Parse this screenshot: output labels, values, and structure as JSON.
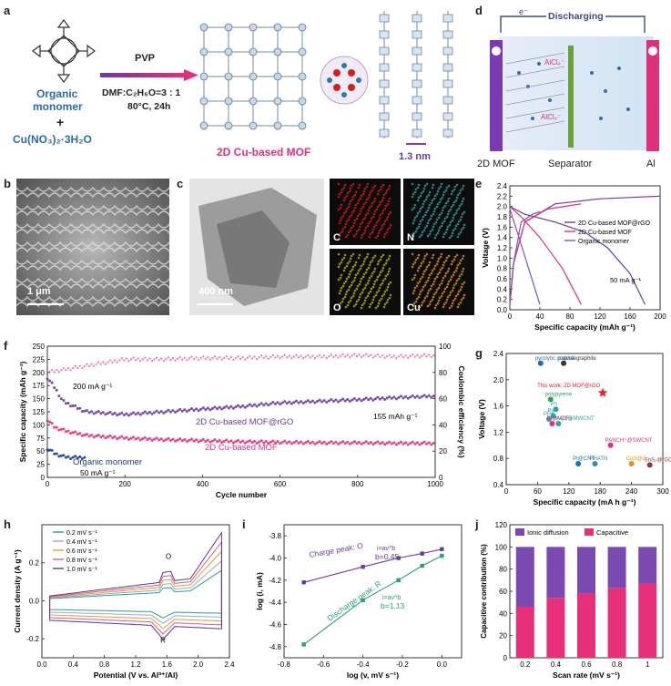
{
  "panel_labels": {
    "a": "a",
    "b": "b",
    "c": "c",
    "d": "d",
    "e": "e",
    "f": "f",
    "g": "g",
    "h": "h",
    "i": "i",
    "j": "j"
  },
  "panel_a": {
    "monomer_line1": "Organic",
    "monomer_line2": "monomer",
    "plus": "+",
    "salt": "Cu(NO₃)₂·3H₂O",
    "arrow_top": "PVP",
    "cond1": "DMF:C₂H₅O=3 : 1",
    "cond2": "80°C, 24h",
    "product": "2D Cu-based MOF",
    "spacing": "1.3 nm"
  },
  "panel_b": {
    "scale": "1 μm"
  },
  "panel_c": {
    "scale": "400 nm",
    "maps": [
      "C",
      "N",
      "O",
      "Cu"
    ],
    "map_colors": [
      "#d01818",
      "#2a9a9a",
      "#a8a820",
      "#d08a18"
    ]
  },
  "panel_d": {
    "title": "Discharging",
    "electron": "e⁻",
    "anode": "2D MOF",
    "separator": "Separator",
    "cathode": "Al",
    "species1": "AlCl₄⁻",
    "species2": "AlCl₄⁻"
  },
  "chart_data": [
    {
      "panel": "e",
      "type": "line",
      "xlabel": "Specific capacity (mAh g⁻¹)",
      "ylabel": "Voltage (V)",
      "xlim": [
        0,
        200
      ],
      "ylim": [
        0,
        2.4
      ],
      "xticks": [
        0,
        40,
        80,
        120,
        160,
        200
      ],
      "yticks": [
        0,
        0.2,
        0.4,
        0.6,
        0.8,
        1.0,
        1.2,
        1.4,
        1.6,
        1.8,
        2.0,
        2.2,
        2.4
      ],
      "annotation": "50 mA g⁻¹",
      "series": [
        {
          "name": "2D Cu-based MOF@rGO",
          "color": "#6a3aa0",
          "discharge": [
            [
              0,
              2.0
            ],
            [
              20,
              1.85
            ],
            [
              60,
              1.7
            ],
            [
              100,
              1.5
            ],
            [
              130,
              1.2
            ],
            [
              160,
              0.7
            ],
            [
              180,
              0.1
            ]
          ],
          "charge": [
            [
              0,
              0.1
            ],
            [
              5,
              0.9
            ],
            [
              20,
              1.7
            ],
            [
              60,
              2.05
            ],
            [
              120,
              2.15
            ],
            [
              200,
              2.2
            ]
          ]
        },
        {
          "name": "2D Cu-based MOF",
          "color": "#e0307a",
          "discharge": [
            [
              0,
              2.0
            ],
            [
              15,
              1.8
            ],
            [
              40,
              1.4
            ],
            [
              70,
              0.8
            ],
            [
              95,
              0.1
            ]
          ],
          "charge": [
            [
              0,
              0.1
            ],
            [
              5,
              0.9
            ],
            [
              20,
              1.7
            ],
            [
              50,
              1.95
            ],
            [
              95,
              2.05
            ]
          ]
        },
        {
          "name": "Organic monomer",
          "color": "#7a55b8",
          "discharge": [
            [
              0,
              1.95
            ],
            [
              10,
              1.5
            ],
            [
              25,
              0.8
            ],
            [
              40,
              0.1
            ]
          ],
          "charge": [
            [
              0,
              0.1
            ],
            [
              5,
              0.9
            ],
            [
              15,
              1.7
            ],
            [
              30,
              1.85
            ],
            [
              40,
              1.9
            ]
          ]
        }
      ]
    },
    {
      "panel": "f",
      "type": "scatter",
      "xlabel": "Cycle number",
      "ylabel": "Specific capacity (mAh g⁻¹)",
      "y2label": "Coulombic efficiency (%)",
      "xlim": [
        0,
        1000
      ],
      "ylim": [
        0,
        250
      ],
      "y2lim": [
        0,
        100
      ],
      "xticks": [
        0,
        200,
        400,
        600,
        800,
        1000
      ],
      "yticks": [
        0,
        25,
        50,
        75,
        100,
        125,
        150,
        175,
        200,
        225,
        250
      ],
      "y2ticks": [
        0,
        20,
        40,
        60,
        80,
        100
      ],
      "annotations": [
        "200 mA g⁻¹",
        "50 mA g⁻¹",
        "155 mAh g⁻¹"
      ],
      "series": [
        {
          "name": "2D Cu-based MOF@rGO",
          "color": "#6a3aa0",
          "points": [
            [
              0,
              190
            ],
            [
              20,
              170
            ],
            [
              40,
              145
            ],
            [
              100,
              125
            ],
            [
              200,
              120
            ],
            [
              300,
              125
            ],
            [
              400,
              130
            ],
            [
              500,
              135
            ],
            [
              600,
              142
            ],
            [
              700,
              145
            ],
            [
              800,
              148
            ],
            [
              900,
              152
            ],
            [
              1000,
              155
            ]
          ]
        },
        {
          "name": "2D Cu-based MOF",
          "color": "#e0307a",
          "points": [
            [
              0,
              110
            ],
            [
              20,
              95
            ],
            [
              50,
              88
            ],
            [
              100,
              80
            ],
            [
              200,
              75
            ],
            [
              300,
              72
            ],
            [
              400,
              70
            ],
            [
              500,
              68
            ],
            [
              600,
              67
            ],
            [
              700,
              66
            ],
            [
              800,
              66
            ],
            [
              900,
              65
            ],
            [
              1000,
              65
            ]
          ]
        },
        {
          "name": "Organic monomer",
          "color": "#1a3a90",
          "points": [
            [
              0,
              55
            ],
            [
              20,
              45
            ],
            [
              40,
              40
            ],
            [
              60,
              38
            ],
            [
              80,
              38
            ],
            [
              100,
              38
            ]
          ]
        },
        {
          "name": "CE",
          "color": "#e0307a",
          "points": [
            [
              0,
              80
            ],
            [
              100,
              85
            ],
            [
              200,
              90
            ],
            [
              300,
              90
            ],
            [
              400,
              91
            ],
            [
              500,
              91
            ],
            [
              600,
              92
            ],
            [
              700,
              92
            ],
            [
              800,
              93
            ],
            [
              900,
              92
            ],
            [
              1000,
              93
            ]
          ]
        }
      ]
    },
    {
      "panel": "g",
      "type": "scatter",
      "xlabel": "Specific capacity (mA h g⁻¹)",
      "ylabel": "Voltage (V)",
      "xlim": [
        0,
        300
      ],
      "ylim": [
        0.4,
        2.4
      ],
      "xticks": [
        0,
        60,
        120,
        180,
        240,
        300
      ],
      "yticks": [
        0.4,
        0.8,
        1.2,
        1.6,
        2.0,
        2.4
      ],
      "points": [
        {
          "label": "natural graphite",
          "x": 110,
          "y": 2.25,
          "color": "#333333"
        },
        {
          "label": "pyrolytic graphite",
          "x": 66,
          "y": 2.25,
          "color": "#2a6ab0"
        },
        {
          "label": "This work: 2D MOF@rGO",
          "x": 185,
          "y": 1.8,
          "color": "#e0202a"
        },
        {
          "label": "polypyrene",
          "x": 85,
          "y": 1.7,
          "color": "#30a050"
        },
        {
          "label": "Pn",
          "x": 95,
          "y": 1.55,
          "color": "#30a0a0"
        },
        {
          "label": "Py",
          "x": 90,
          "y": 1.45,
          "color": "#30a0a0"
        },
        {
          "label": "PPy",
          "x": 82,
          "y": 1.4,
          "color": "#30a0a0"
        },
        {
          "label": "PI@MOFs",
          "x": 88,
          "y": 1.33,
          "color": "#e0307a"
        },
        {
          "label": "PAQS@MWCNT",
          "x": 100,
          "y": 1.33,
          "color": "#30a0a0"
        },
        {
          "label": "PANCH⁺@SWCNT",
          "x": 200,
          "y": 1.0,
          "color": "#e0307a"
        },
        {
          "label": "PI@CNT",
          "x": 138,
          "y": 0.72,
          "color": "#1a70b0"
        },
        {
          "label": "PHATN",
          "x": 170,
          "y": 0.72,
          "color": "#3a8a9a"
        },
        {
          "label": "CuS@C",
          "x": 240,
          "y": 0.72,
          "color": "#e09020"
        },
        {
          "label": "SnS₂@rGO",
          "x": 275,
          "y": 0.7,
          "color": "#8a3a3a"
        }
      ]
    },
    {
      "panel": "h",
      "type": "line",
      "xlabel": "Potential (V vs. Al³⁺/Al)",
      "ylabel": "Current density (A g⁻¹)",
      "xlim": [
        0,
        2.4
      ],
      "ylim": [
        -0.3,
        0.4
      ],
      "xticks": [
        0.0,
        0.4,
        0.8,
        1.2,
        1.6,
        2.0,
        2.4
      ],
      "yticks": [
        -0.2,
        0.0,
        0.2
      ],
      "peak_labels": [
        "O",
        "R"
      ],
      "series": [
        {
          "name": "0.2 mV s⁻¹",
          "color": "#2aa08a"
        },
        {
          "name": "0.4 mV s⁻¹",
          "color": "#a0a0d8"
        },
        {
          "name": "0.6 mV s⁻¹",
          "color": "#e89a30"
        },
        {
          "name": "0.8 mV s⁻¹",
          "color": "#d85a9a"
        },
        {
          "name": "1.0 mV s⁻¹",
          "color": "#5a3a80"
        }
      ]
    },
    {
      "panel": "i",
      "type": "line",
      "xlabel": "log (v, mV s⁻¹)",
      "ylabel": "log (i, mA)",
      "xlim": [
        -0.8,
        0.1
      ],
      "ylim": [
        -4.9,
        -3.7
      ],
      "xticks": [
        -0.8,
        -0.6,
        -0.4,
        -0.2,
        0.0
      ],
      "yticks": [
        -4.8,
        -4.6,
        -4.4,
        -4.2,
        -4.0,
        -3.8
      ],
      "series": [
        {
          "name": "Charge peak: O",
          "color": "#6a3aa0",
          "eq": "i=av^b",
          "b": "b=0.45",
          "points": [
            [
              -0.7,
              -4.22
            ],
            [
              -0.4,
              -4.08
            ],
            [
              -0.22,
              -4.0
            ],
            [
              -0.1,
              -3.96
            ],
            [
              0.0,
              -3.92
            ]
          ]
        },
        {
          "name": "Discharge peak: R",
          "color": "#2aa070",
          "eq": "i=av^b",
          "b": "b=1.13",
          "points": [
            [
              -0.7,
              -4.78
            ],
            [
              -0.4,
              -4.38
            ],
            [
              -0.22,
              -4.2
            ],
            [
              -0.1,
              -4.07
            ],
            [
              0.0,
              -3.98
            ]
          ]
        }
      ]
    },
    {
      "panel": "j",
      "type": "bar",
      "xlabel": "Scan rate (mV s⁻¹)",
      "ylabel": "Capacitive contribution (%)",
      "categories": [
        "0.2",
        "0.4",
        "0.6",
        "0.8",
        "1"
      ],
      "ylim": [
        0,
        120
      ],
      "yticks": [
        0,
        20,
        40,
        60,
        80,
        100,
        120
      ],
      "series": [
        {
          "name": "Capacitive",
          "color": "#e8307a",
          "values": [
            46,
            54,
            58,
            63,
            67
          ]
        },
        {
          "name": "Ionic diffusion",
          "color": "#7a4ab0",
          "values": [
            54,
            46,
            42,
            37,
            33
          ]
        }
      ]
    }
  ]
}
